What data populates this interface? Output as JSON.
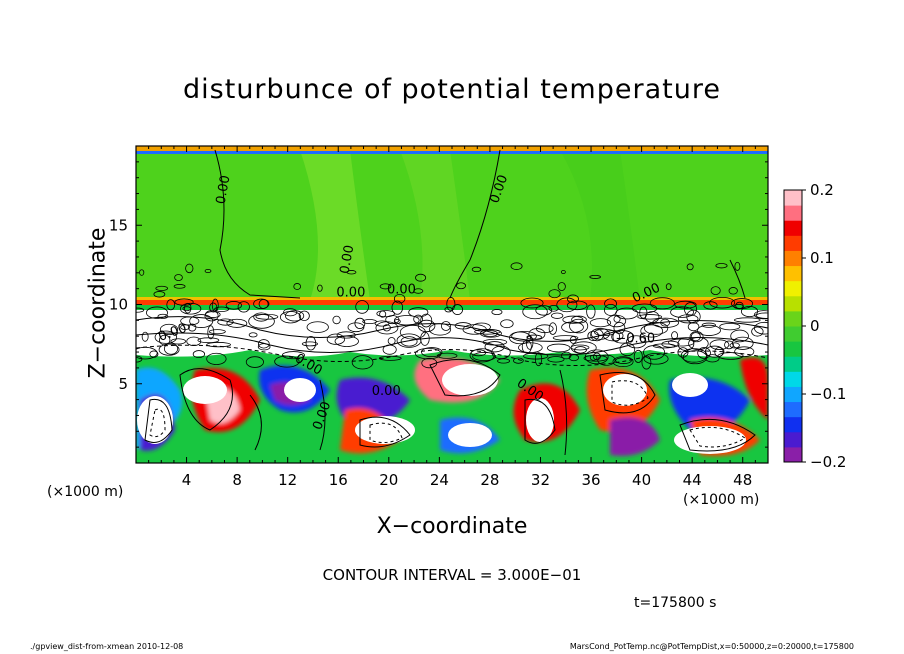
{
  "chart_data": {
    "type": "heatmap",
    "title": "disturbunce of potential temperature",
    "xlabel": "X−coordinate",
    "ylabel": "Z−coordinate",
    "x_unit": "(×1000 m)",
    "x_ticks": [
      "4",
      "8",
      "12",
      "16",
      "20",
      "24",
      "28",
      "32",
      "36",
      "40",
      "44",
      "48"
    ],
    "y_ticks": [
      "5",
      "10",
      "15"
    ],
    "xlim": [
      0,
      50
    ],
    "ylim": [
      0,
      20
    ],
    "colorbar": {
      "range": [
        -0.2,
        0.2
      ],
      "tick_labels": [
        "0.2",
        "0.1",
        "0",
        "−0.1",
        "−0.2"
      ],
      "tick_values": [
        0.2,
        0.1,
        0,
        -0.1,
        -0.2
      ],
      "colors": [
        "#8a1fa8",
        "#4a1bd0",
        "#1030f0",
        "#1e6cff",
        "#10a6ff",
        "#00d8e8",
        "#00cc88",
        "#18c640",
        "#40cc30",
        "#6ad41a",
        "#b8e000",
        "#f0f000",
        "#ffc000",
        "#ff8000",
        "#ff3c00",
        "#f00000",
        "#ff6f80",
        "#ffc0c8"
      ]
    },
    "contour_labels": [
      "0.00",
      "0.00",
      "0.00",
      "0.00",
      "0.00",
      "0.00",
      "0.00",
      "0.00",
      "−0.60",
      "0.00",
      "0.00",
      "0.00"
    ],
    "contour_interval_text": "CONTOUR INTERVAL = 3.000E−01",
    "time_text": "t=175800 s"
  },
  "footer": {
    "left": "./gpview_dist-from-xmean  2010-12-08",
    "right": "MarsCond_PotTemp.nc@PotTempDist,x=0:50000,z=0:20000,t=175800"
  }
}
